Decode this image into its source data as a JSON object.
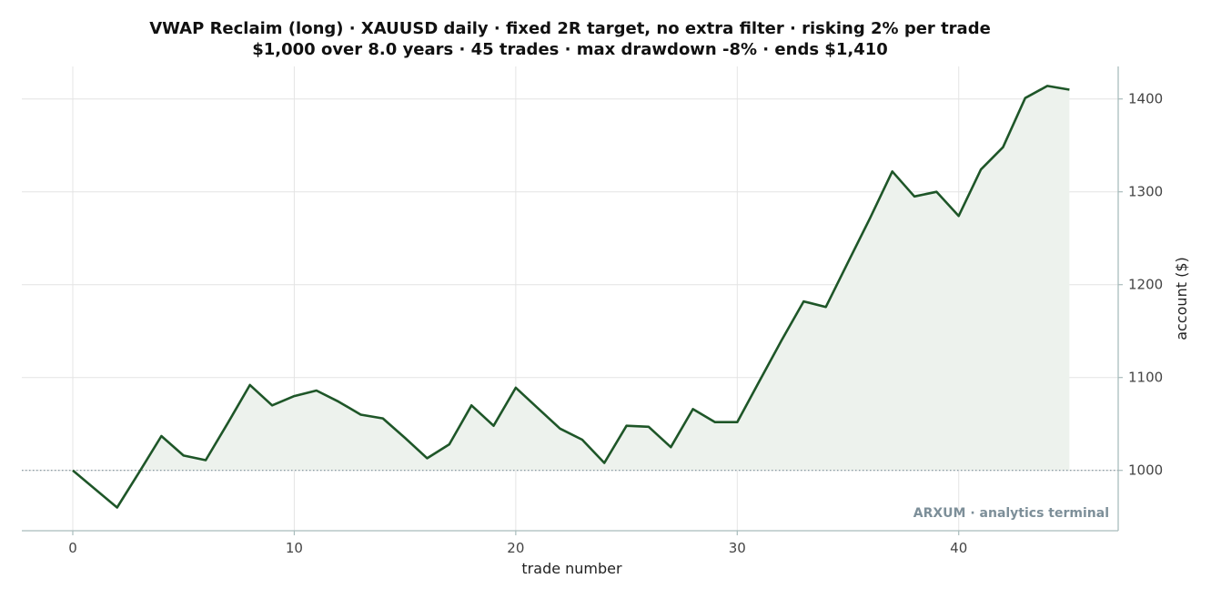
{
  "chart_data": {
    "type": "line",
    "title": "VWAP Reclaim (long) · XAUUSD daily · fixed 2R target, no extra filter · risking 2% per trade",
    "subtitle": "$1,000 over 8.0 years · 45 trades · max drawdown -8% · ends $1,410",
    "xlabel": "trade number",
    "ylabel": "account ($)",
    "xlim": [
      -2.3,
      47.2
    ],
    "ylim": [
      935,
      1435
    ],
    "x_ticks": [
      0,
      10,
      20,
      30,
      40
    ],
    "y_ticks": [
      1000,
      1100,
      1200,
      1300,
      1400
    ],
    "baseline": 1000,
    "grid": true,
    "y_axis_side": "right",
    "series": [
      {
        "x": [
          0,
          1,
          2,
          3,
          4,
          5,
          6,
          7,
          8,
          9,
          10,
          11,
          12,
          13,
          14,
          15,
          16,
          17,
          18,
          19,
          20,
          21,
          22,
          23,
          24,
          25,
          26,
          27,
          28,
          29,
          30,
          31,
          32,
          33,
          34,
          35,
          36,
          37,
          38,
          39,
          40,
          41,
          42,
          43,
          44,
          45
        ],
        "values": [
          1000,
          980,
          960,
          998,
          1037,
          1016,
          1011,
          1051,
          1092,
          1070,
          1080,
          1086,
          1074,
          1060,
          1056,
          1035,
          1013,
          1028,
          1070,
          1048,
          1089,
          1067,
          1045,
          1033,
          1008,
          1048,
          1047,
          1025,
          1066,
          1052,
          1052,
          1096,
          1140,
          1182,
          1176,
          1224,
          1272,
          1322,
          1295,
          1300,
          1274,
          1324,
          1348,
          1401,
          1414,
          1410
        ]
      }
    ],
    "colors": {
      "line": "#1e5628",
      "fill": "#edf2ed",
      "grid": "#e4e4e4",
      "axis": "#a9bcbc",
      "baseline": "#7d8f99",
      "watermark": "#7d8f99"
    }
  },
  "watermark": "ARXUM · analytics terminal"
}
